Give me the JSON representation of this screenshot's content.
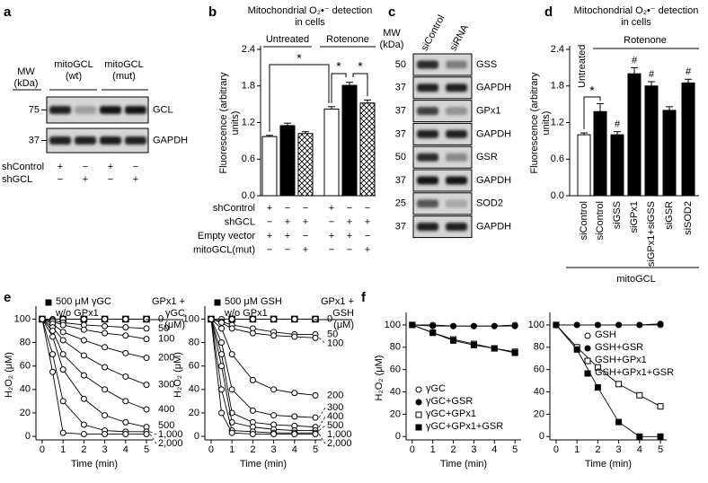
{
  "panel_labels": [
    "a",
    "b",
    "c",
    "d",
    "e",
    "f"
  ],
  "blot_a": {
    "mw_header": "MW (kDa)",
    "lane_headers": [
      "mitoGCL (wt)",
      "mitoGCL (mut)"
    ],
    "rows": [
      {
        "mw": "75",
        "label": "GCL"
      },
      {
        "mw": "37",
        "label": "GAPDH"
      }
    ],
    "conditions": [
      {
        "name": "shControl",
        "signs": [
          "+",
          "−",
          "+",
          "−"
        ]
      },
      {
        "name": "shGCL",
        "signs": [
          "−",
          "+",
          "−",
          "+"
        ]
      }
    ]
  },
  "blot_c": {
    "mw_header": "MW (kDa)",
    "lanes": [
      "siControl",
      "siRNA"
    ],
    "rows": [
      {
        "mw": "50",
        "label": "GSS"
      },
      {
        "mw": "37",
        "label": "GAPDH"
      },
      {
        "mw": "37",
        "label": "GPx1"
      },
      {
        "mw": "37",
        "label": "GAPDH"
      },
      {
        "mw": "50",
        "label": "GSR"
      },
      {
        "mw": "37",
        "label": "GAPDH"
      },
      {
        "mw": "25",
        "label": "SOD2"
      },
      {
        "mw": "37",
        "label": "GAPDH"
      }
    ]
  },
  "chart_data": [
    {
      "type": "bar",
      "title": "Mitochondrial O₂•⁻ detection in cells",
      "ylabel": "Fluorescence (arbitrary units)",
      "groups": [
        "Untreated",
        "Rotenone"
      ],
      "values": [
        0.97,
        1.15,
        1.02,
        1.42,
        1.81,
        1.52
      ],
      "errors": [
        0.02,
        0.04,
        0.03,
        0.04,
        0.05,
        0.05
      ],
      "fills": [
        "white",
        "black",
        "crosshatch",
        "white",
        "black",
        "crosshatch"
      ],
      "ylim": [
        0,
        2.4
      ],
      "yticks": [
        {
          "value": 0,
          "label": "0.0"
        },
        0.6,
        1.2,
        1.8,
        2.4
      ],
      "conditions": [
        {
          "name": "shControl",
          "signs": [
            "+",
            "−",
            "−",
            "+",
            "−",
            "−"
          ]
        },
        {
          "name": "shGCL",
          "signs": [
            "−",
            "+",
            "+",
            "−",
            "+",
            "+"
          ]
        },
        {
          "name": "Empty vector",
          "signs": [
            "+",
            "+",
            "−",
            "+",
            "+",
            "−"
          ]
        },
        {
          "name": "mitoGCL(mut)",
          "signs": [
            "−",
            "−",
            "+",
            "−",
            "−",
            "+"
          ]
        }
      ],
      "significance": [
        "*",
        "*",
        "*"
      ]
    },
    {
      "type": "bar",
      "title": "Mitochondrial O₂•⁻ detection in cells",
      "ylabel": "Fluorescence (arbitrary units)",
      "groups": [
        "Untreated",
        "Rotenone"
      ],
      "group_footer": "mitoGCL",
      "categories": [
        "siControl",
        "siControl",
        "siGSS",
        "siGPx1",
        "siGPx1+siGSS",
        "siGSR",
        "siSOD2"
      ],
      "values": [
        1.0,
        1.38,
        1.0,
        2.0,
        1.8,
        1.4,
        1.85
      ],
      "errors": [
        0.03,
        0.13,
        0.05,
        0.1,
        0.07,
        0.06,
        0.06
      ],
      "fills": [
        "white",
        "black",
        "black",
        "black",
        "black",
        "black",
        "black"
      ],
      "ylim": [
        0,
        2.4
      ],
      "yticks": [
        {
          "value": 0,
          "label": "0.0"
        },
        0.6,
        1.2,
        1.8,
        2.4
      ],
      "significance": [
        "*",
        "#",
        "#",
        "#",
        "#"
      ]
    },
    {
      "type": "line",
      "xlabel": "Time (min)",
      "ylabel": "H₂O₂ (μM)",
      "legend": "top-left",
      "legend_header": "GPx1 + γGC (μM)",
      "x": [
        0,
        0.5,
        1,
        2,
        3,
        4,
        5
      ],
      "xlim": [
        -0.3,
        5.3
      ],
      "ylim": [
        -3,
        108
      ],
      "xticks": [
        0,
        1,
        2,
        3,
        4,
        5
      ],
      "yticks": [
        0,
        20,
        40,
        60,
        80,
        100
      ],
      "series": [
        {
          "name": "500 μM γGC w/o GPx1",
          "marker": "square",
          "values": [
            100,
            null,
            100,
            100,
            100,
            100,
            100
          ]
        },
        {
          "name": "0",
          "marker": "open-circle",
          "values": [
            100,
            100,
            100,
            100,
            100,
            100,
            100
          ]
        },
        {
          "name": "50",
          "marker": "open-circle",
          "values": [
            100,
            99,
            97,
            95,
            94,
            93,
            92
          ]
        },
        {
          "name": "100",
          "marker": "open-circle",
          "values": [
            100,
            98,
            95,
            91,
            88,
            86,
            83
          ]
        },
        {
          "name": "200",
          "marker": "open-circle",
          "values": [
            100,
            96,
            89,
            82,
            76,
            71,
            67
          ]
        },
        {
          "name": "300",
          "marker": "open-circle",
          "values": [
            100,
            93,
            82,
            69,
            59,
            51,
            44
          ]
        },
        {
          "name": "400",
          "marker": "open-circle",
          "values": [
            100,
            90,
            70,
            52,
            40,
            30,
            23
          ]
        },
        {
          "name": "500",
          "marker": "open-circle",
          "values": [
            100,
            85,
            57,
            32,
            18,
            12,
            8
          ]
        },
        {
          "name": "1,000",
          "marker": "open-circle",
          "values": [
            100,
            70,
            30,
            10,
            5,
            4,
            4
          ]
        },
        {
          "name": "2,000",
          "marker": "open-circle",
          "values": [
            100,
            55,
            3,
            2,
            2,
            2,
            2
          ]
        }
      ]
    },
    {
      "type": "line",
      "xlabel": "Time (min)",
      "ylabel": "H₂O₂ (μM)",
      "legend": "top-left",
      "legend_header": "GPx1 + GSH (μM)",
      "x": [
        0,
        0.5,
        1,
        2,
        3,
        4,
        5
      ],
      "xlim": [
        -0.3,
        5.3
      ],
      "ylim": [
        -3,
        108
      ],
      "xticks": [
        0,
        1,
        2,
        3,
        4,
        5
      ],
      "yticks": [
        0,
        20,
        40,
        60,
        80,
        100
      ],
      "series": [
        {
          "name": "500 μM GSH w/o GPx1",
          "marker": "square",
          "values": [
            100,
            null,
            100,
            100,
            100,
            100,
            100
          ]
        },
        {
          "name": "0",
          "marker": "open-circle",
          "values": [
            100,
            100,
            100,
            100,
            100,
            100,
            100
          ]
        },
        {
          "name": "50",
          "marker": "open-circle",
          "values": [
            100,
            98,
            95,
            92,
            89,
            87,
            87
          ]
        },
        {
          "name": "100",
          "marker": "open-circle",
          "values": [
            100,
            97,
            92,
            88,
            86,
            85,
            84
          ]
        },
        {
          "name": "200",
          "marker": "open-circle",
          "values": [
            100,
            92,
            70,
            48,
            40,
            37,
            35
          ]
        },
        {
          "name": "300",
          "marker": "open-circle",
          "values": [
            100,
            80,
            40,
            22,
            18,
            17,
            16
          ]
        },
        {
          "name": "400",
          "marker": "open-circle",
          "values": [
            100,
            70,
            20,
            12,
            10,
            9,
            8
          ]
        },
        {
          "name": "500",
          "marker": "open-circle",
          "values": [
            100,
            60,
            12,
            8,
            6,
            5,
            5
          ]
        },
        {
          "name": "1,000",
          "marker": "open-circle",
          "values": [
            100,
            40,
            5,
            4,
            3,
            3,
            3
          ]
        },
        {
          "name": "2,000",
          "marker": "open-circle",
          "values": [
            100,
            20,
            3,
            2,
            2,
            2,
            2
          ]
        }
      ]
    },
    {
      "type": "line",
      "xlabel": "Time (min)",
      "ylabel": "H₂O₂ (μM)",
      "legend": "bottom-left",
      "x": [
        0,
        1,
        2,
        3,
        4,
        5
      ],
      "xlim": [
        -0.3,
        5.3
      ],
      "ylim": [
        -3,
        108
      ],
      "xticks": [
        0,
        1,
        2,
        3,
        4,
        5
      ],
      "yticks": [
        0,
        20,
        40,
        60,
        80,
        100
      ],
      "series": [
        {
          "name": "γGC",
          "marker": "open-circle",
          "values": [
            100,
            100,
            99,
            99,
            99,
            100
          ]
        },
        {
          "name": "γGC+GSR",
          "marker": "filled-circle",
          "values": [
            100,
            99,
            99,
            99,
            99,
            99
          ]
        },
        {
          "name": "γGC+GPx1",
          "marker": "open-square",
          "values": [
            100,
            93,
            87,
            83,
            79,
            76
          ]
        },
        {
          "name": "γGC+GPx1+GSR",
          "marker": "filled-square",
          "values": [
            100,
            93,
            86,
            82,
            79,
            75
          ]
        }
      ]
    },
    {
      "type": "line",
      "xlabel": "Time (min)",
      "legend": "right",
      "x": [
        0,
        1,
        2,
        3,
        4,
        5
      ],
      "xlim": [
        -0.3,
        5.3
      ],
      "ylim": [
        -3,
        108
      ],
      "xticks": [
        0,
        1,
        2,
        3,
        4,
        5
      ],
      "yticks": [
        0,
        20,
        40,
        60,
        80,
        100
      ],
      "series": [
        {
          "name": "GSH",
          "marker": "open-circle",
          "values": [
            100,
            100,
            100,
            100,
            100,
            100
          ]
        },
        {
          "name": "GSH+GSR",
          "marker": "filled-circle",
          "values": [
            100,
            100,
            100,
            100,
            100,
            101
          ]
        },
        {
          "name": "GSH+GPx1",
          "marker": "open-square",
          "values": [
            100,
            80,
            62,
            47,
            37,
            27
          ]
        },
        {
          "name": "GSH+GPx1+GSR",
          "marker": "filled-square",
          "values": [
            100,
            78,
            44,
            13,
            0,
            0
          ]
        }
      ]
    }
  ]
}
